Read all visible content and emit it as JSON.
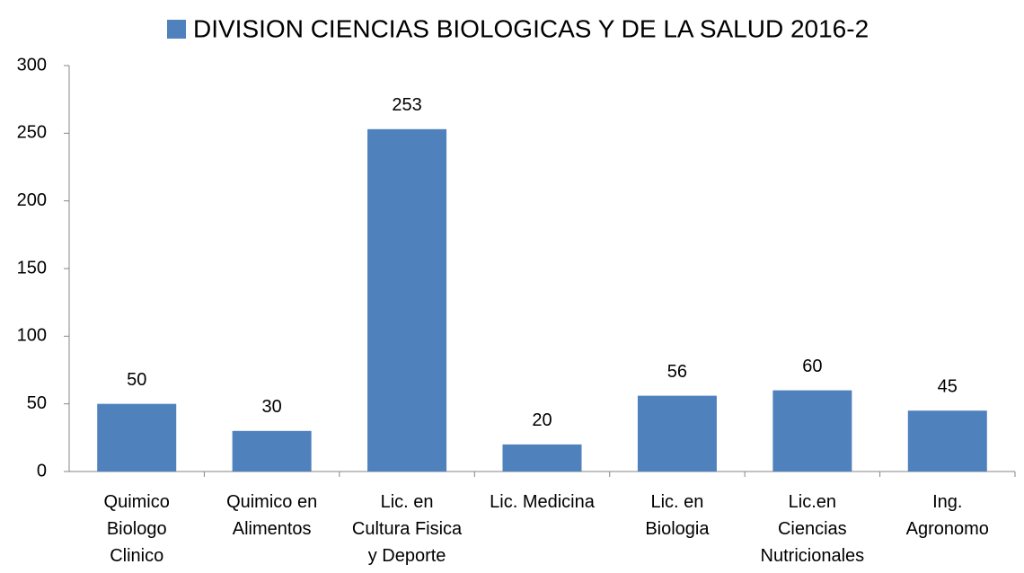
{
  "chart_data": {
    "type": "bar",
    "categories": [
      "Quimico\nBiologo\nClinico",
      "Quimico en\nAlimentos",
      "Lic. en\nCultura Fisica\ny Deporte",
      "Lic. Medicina",
      "Lic. en\nBiologia",
      "Lic.en\nCiencias\nNutricionales",
      "Ing.\nAgronomo"
    ],
    "series": [
      {
        "name": "DIVISION CIENCIAS BIOLOGICAS Y DE LA SALUD 2016-2",
        "color": "#4f81bd",
        "values": [
          50,
          30,
          253,
          20,
          56,
          60,
          45
        ]
      }
    ],
    "ylim": [
      0,
      300
    ],
    "yticks": [
      0,
      50,
      100,
      150,
      200,
      250,
      300
    ],
    "grid": false,
    "legend": "top"
  }
}
